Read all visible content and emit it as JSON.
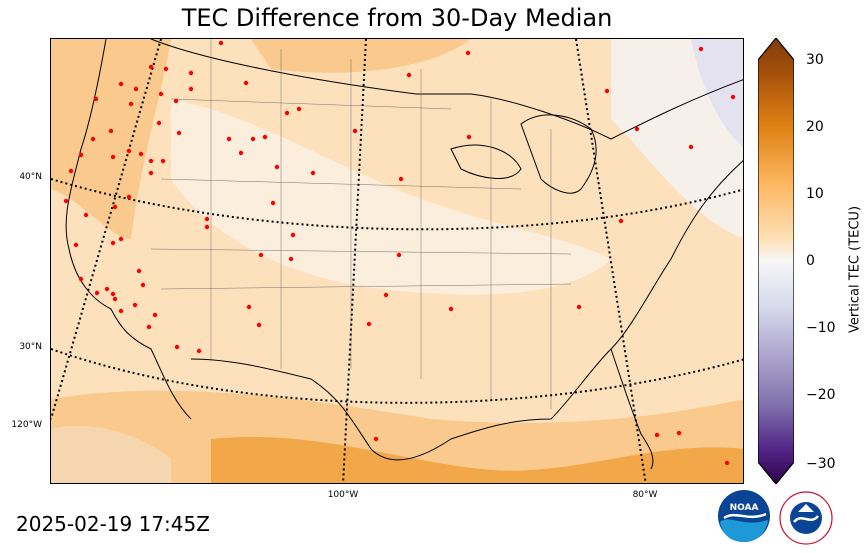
{
  "title": "TEC Difference from 30-Day Median",
  "timestamp": "2025-02-19 17:45Z",
  "map": {
    "lat_labels": [
      "40°N",
      "30°N"
    ],
    "lon_labels": [
      "120°W",
      "100°W",
      "80°W"
    ],
    "colors": {
      "base": "#fde1bd",
      "light": "#fbeedc",
      "pale": "#f6f0ea",
      "mid": "#f9c98d",
      "strong": "#f2a849",
      "cool": "#e4e2ef",
      "station": "#ff0000"
    }
  },
  "colorbar": {
    "label": "Vertical TEC (TECU)",
    "ticks": [
      "30",
      "20",
      "10",
      "0",
      "−10",
      "−20",
      "−30"
    ],
    "min": -30,
    "max": 30
  },
  "logos": [
    "NOAA",
    "NATIONAL WEATHER SERVICE"
  ]
}
